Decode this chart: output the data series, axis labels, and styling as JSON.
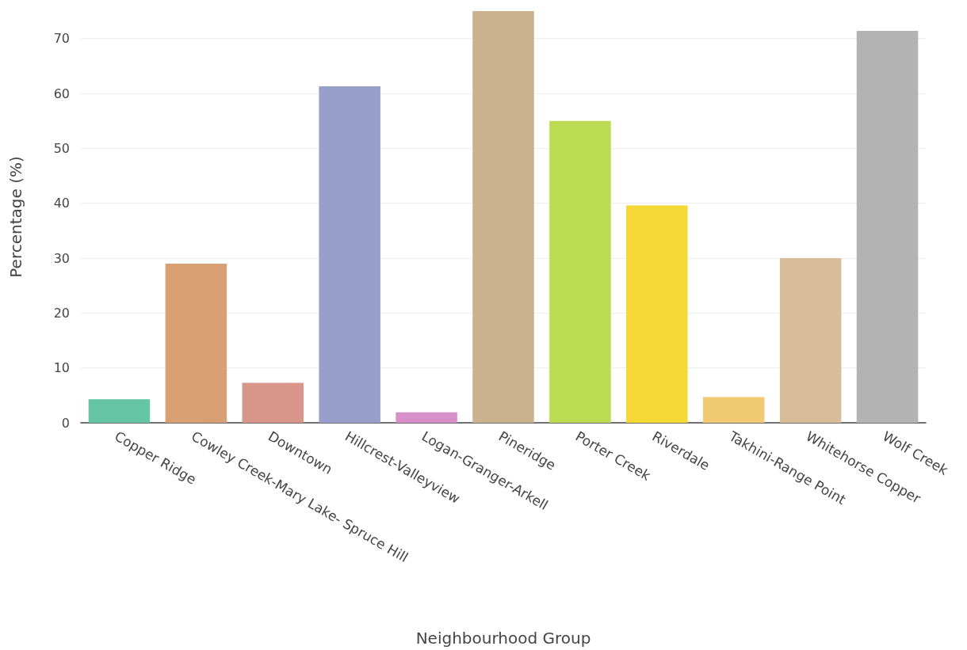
{
  "chart_data": {
    "type": "bar",
    "xlabel": "Neighbourhood Group",
    "ylabel": "Percentage (%)",
    "categories": [
      "Copper Ridge",
      "Cowley Creek-Mary Lake- Spruce Hill",
      "Downtown",
      "Hillcrest-Valleyview",
      "Logan-Granger-Arkell",
      "Pineridge",
      "Porter Creek",
      "Riverdale",
      "Takhini-Range Point",
      "Whitehorse Copper",
      "Wolf Creek"
    ],
    "values": [
      4.3,
      29.0,
      7.3,
      61.3,
      1.9,
      75.0,
      55.0,
      39.6,
      4.7,
      30.0,
      71.4
    ],
    "colors": [
      "#66c5a5",
      "#d9a074",
      "#d9978b",
      "#979fca",
      "#d88fca",
      "#cbb28e",
      "#badb52",
      "#f5d835",
      "#f1ca73",
      "#d7bd9a",
      "#b3b3b3"
    ],
    "ylim": [
      0,
      75
    ],
    "yticks": [
      0,
      10,
      20,
      30,
      40,
      50,
      60,
      70
    ],
    "grid": "y"
  }
}
